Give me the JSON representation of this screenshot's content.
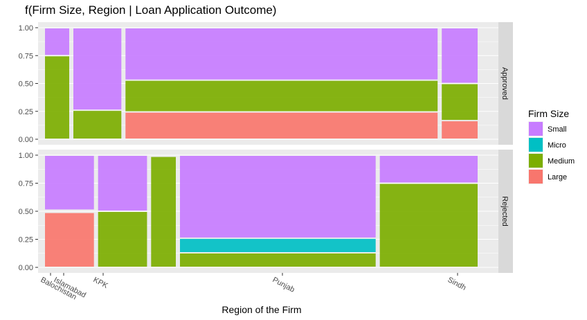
{
  "chart_data": {
    "type": "mosaic",
    "title": "f(Firm Size, Region | Loan Application Outcome)",
    "xlabel": "Region of the Firm",
    "ylabel": "",
    "ylim": [
      0,
      1
    ],
    "y_ticks": [
      "0.00",
      "0.25",
      "0.50",
      "0.75",
      "1.00"
    ],
    "legend": {
      "title": "Firm Size",
      "position": "right",
      "entries": [
        {
          "name": "Small",
          "color": "#C77CFF"
        },
        {
          "name": "Micro",
          "color": "#00BFC4"
        },
        {
          "name": "Medium",
          "color": "#7CAE00"
        },
        {
          "name": "Large",
          "color": "#F8766D"
        }
      ]
    },
    "x_tick_labels": [
      "Balochistan",
      "Islamabad",
      "KPK",
      "Punjab",
      "Sindh"
    ],
    "grid": true,
    "panels": [
      {
        "name": "Approved",
        "columns": [
          {
            "region": "Balochistan",
            "width_share": 0.056,
            "segments": [
              {
                "size": "Medium",
                "y0": 0.0,
                "y1": 0.75
              },
              {
                "size": "Small",
                "y0": 0.75,
                "y1": 1.0
              }
            ]
          },
          {
            "region": "KPK",
            "width_share": 0.111,
            "segments": [
              {
                "size": "Medium",
                "y0": 0.0,
                "y1": 0.26
              },
              {
                "size": "Small",
                "y0": 0.26,
                "y1": 1.0
              }
            ]
          },
          {
            "region": "Punjab",
            "width_share": 0.722,
            "segments": [
              {
                "size": "Large",
                "y0": 0.0,
                "y1": 0.245
              },
              {
                "size": "Medium",
                "y0": 0.245,
                "y1": 0.53
              },
              {
                "size": "Small",
                "y0": 0.53,
                "y1": 1.0
              }
            ]
          },
          {
            "region": "Sindh",
            "width_share": 0.083,
            "segments": [
              {
                "size": "Large",
                "y0": 0.0,
                "y1": 0.167
              },
              {
                "size": "Medium",
                "y0": 0.167,
                "y1": 0.5
              },
              {
                "size": "Small",
                "y0": 0.5,
                "y1": 1.0
              }
            ]
          }
        ]
      },
      {
        "name": "Rejected",
        "columns": [
          {
            "region": "Balochistan",
            "width_share": 0.111,
            "segments": [
              {
                "size": "Large",
                "y0": 0.0,
                "y1": 0.49
              },
              {
                "size": "Small",
                "y0": 0.51,
                "y1": 1.0
              }
            ]
          },
          {
            "region": "KPK",
            "width_share": 0.111,
            "segments": [
              {
                "size": "Medium",
                "y0": 0.0,
                "y1": 0.5
              },
              {
                "size": "Small",
                "y0": 0.5,
                "y1": 1.0
              }
            ]
          },
          {
            "region": "Islamabad/KPK",
            "width_share": 0.056,
            "segments": [
              {
                "size": "Medium",
                "y0": 0.0,
                "y1": 0.99
              }
            ]
          },
          {
            "region": "Punjab",
            "width_share": 0.444,
            "segments": [
              {
                "size": "Medium",
                "y0": 0.0,
                "y1": 0.13
              },
              {
                "size": "Micro",
                "y0": 0.13,
                "y1": 0.26
              },
              {
                "size": "Small",
                "y0": 0.26,
                "y1": 1.0
              }
            ]
          },
          {
            "region": "Sindh",
            "width_share": 0.222,
            "segments": [
              {
                "size": "Medium",
                "y0": 0.0,
                "y1": 0.75
              },
              {
                "size": "Small",
                "y0": 0.75,
                "y1": 1.0
              }
            ]
          }
        ]
      }
    ]
  }
}
